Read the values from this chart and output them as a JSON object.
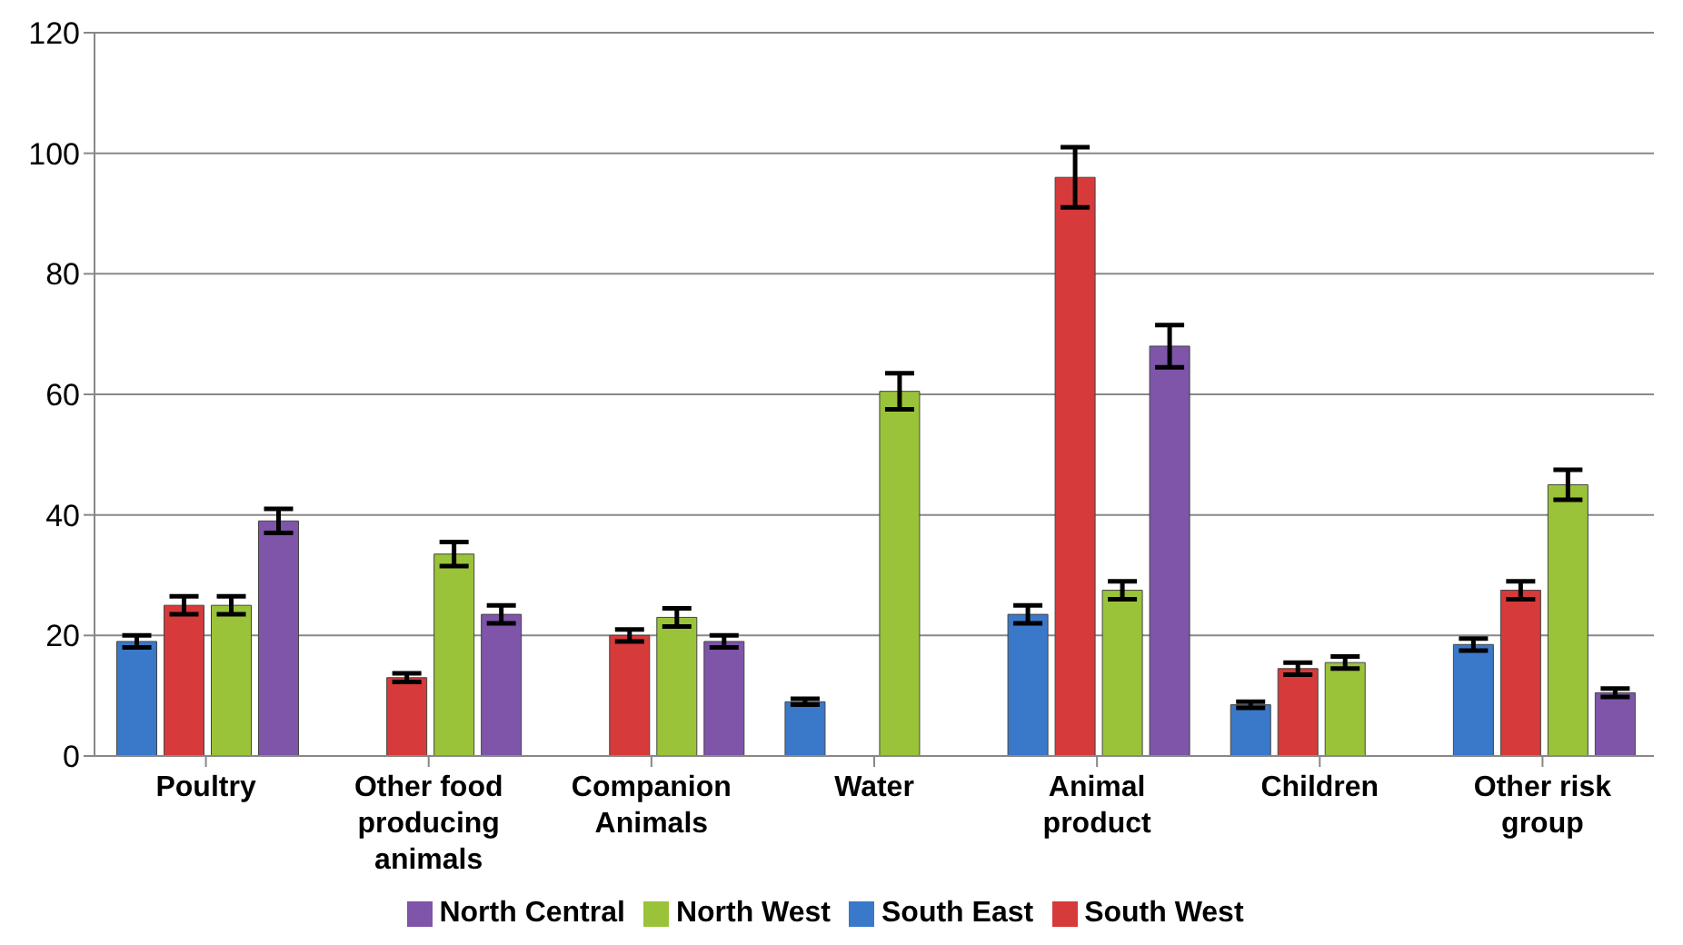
{
  "chart_data": {
    "type": "bar",
    "categories": [
      "Poultry",
      "Other food producing animals",
      "Companion Animals",
      "Water",
      "Animal product",
      "Children",
      "Other risk group"
    ],
    "series": [
      {
        "name": "South East",
        "color": "#3a78c9",
        "values": [
          19,
          null,
          null,
          9,
          23.5,
          8.5,
          18.5
        ],
        "errors": [
          1,
          null,
          null,
          0.5,
          1.5,
          0.5,
          1
        ]
      },
      {
        "name": "South West",
        "color": "#d63a3a",
        "values": [
          25,
          13,
          20,
          null,
          96,
          14.5,
          27.5
        ],
        "errors": [
          1.5,
          0.7,
          1,
          null,
          5,
          1,
          1.5
        ]
      },
      {
        "name": "North West",
        "color": "#9ac33a",
        "values": [
          25,
          33.5,
          23,
          60.5,
          27.5,
          15.5,
          45
        ],
        "errors": [
          1.5,
          2,
          1.5,
          3,
          1.5,
          1,
          2.5
        ]
      },
      {
        "name": "North Central",
        "color": "#7e55a8",
        "values": [
          39,
          23.5,
          19,
          null,
          68,
          null,
          10.5
        ],
        "errors": [
          2,
          1.5,
          1,
          null,
          3.5,
          null,
          0.7
        ]
      }
    ],
    "ylim": [
      0,
      120
    ],
    "yticks": [
      0,
      20,
      40,
      60,
      80,
      100,
      120
    ],
    "grid": "y",
    "legend": "bottom"
  }
}
